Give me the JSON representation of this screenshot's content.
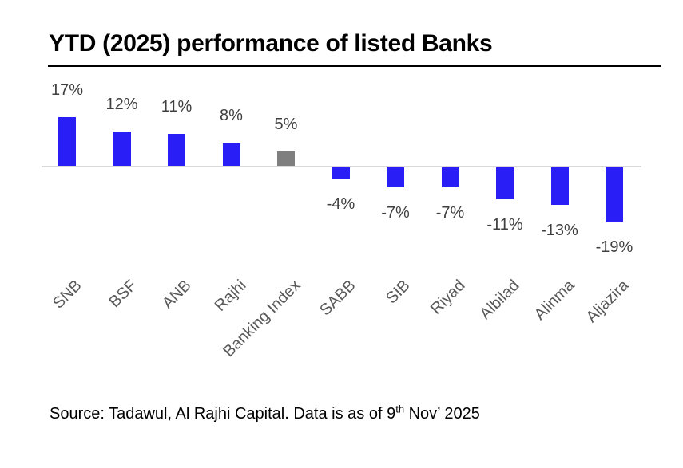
{
  "title": "YTD (2025) performance of listed Banks",
  "source_note": {
    "prefix": "Source: Tadawul, Al Rajhi Capital. Data is as of 9",
    "superscript": "th",
    "suffix": " Nov’ 2025"
  },
  "colors": {
    "bar_bank": "#2A1EF7",
    "bar_index": "#7F7F7F",
    "axis_line": "#D9D9D9",
    "value_label": "#404040",
    "category_label": "#595959",
    "title_text": "#000000",
    "title_rule": "#000000"
  },
  "chart_data": {
    "type": "bar",
    "title": "YTD (2025) performance of listed Banks",
    "categories": [
      "SNB",
      "BSF",
      "ANB",
      "Rajhi",
      "Banking Index",
      "SABB",
      "SIB",
      "Riyad",
      "Albilad",
      "Alinma",
      "Aljazira"
    ],
    "values": [
      17,
      12,
      11,
      8,
      5,
      -4,
      -7,
      -7,
      -11,
      -13,
      -19
    ],
    "value_labels": [
      "17%",
      "12%",
      "11%",
      "8%",
      "5%",
      "-4%",
      "-7%",
      "-7%",
      "-11%",
      "-13%",
      "-19%"
    ],
    "unit": "percent",
    "highlight_category": "Banking Index",
    "baseline": 0,
    "ylim": [
      -19,
      17
    ],
    "grid": false,
    "legend": false,
    "bar_orientation": "vertical",
    "category_label_rotation_deg": 45
  }
}
